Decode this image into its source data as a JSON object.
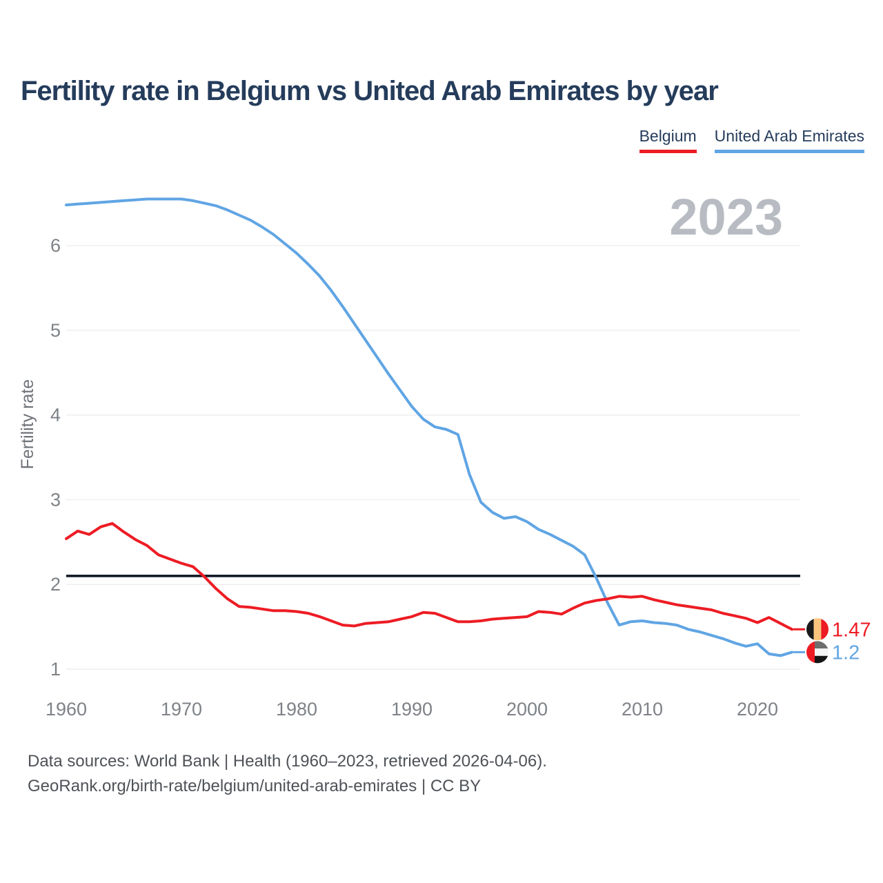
{
  "title": "Fertility rate in Belgium vs United Arab Emirates by year",
  "watermark_year": "2023",
  "legend": {
    "items": [
      {
        "label": "Belgium",
        "color": "#ed1c24"
      },
      {
        "label": "United Arab Emirates",
        "color": "#60a5e4"
      }
    ]
  },
  "end_labels": [
    {
      "series": "Belgium",
      "value": "1.47",
      "color": "#ed1c24",
      "flag": "belgium-flag-icon"
    },
    {
      "series": "United Arab Emirates",
      "value": "1.2",
      "color": "#60a5e4",
      "flag": "uae-flag-icon"
    }
  ],
  "footer": {
    "line1": "Data sources: World Bank | Health (1960–2023, retrieved 2026-04-06).",
    "line2": "GeoRank.org/birth-rate/belgium/united-arab-emirates | CC BY"
  },
  "chart_data": {
    "type": "line",
    "title": "Fertility rate in Belgium vs United Arab Emirates by year",
    "ylabel": "Fertility rate",
    "xlabel": "",
    "xlim": [
      1960,
      2023
    ],
    "ylim": [
      0.8,
      6.8
    ],
    "grid": true,
    "legend_position": "top-right",
    "x_ticks": [
      1960,
      1970,
      1980,
      1990,
      2000,
      2010,
      2020
    ],
    "y_ticks": [
      1,
      2,
      3,
      4,
      5,
      6
    ],
    "reference_line": {
      "value": 2.1,
      "color": "#0e1420"
    },
    "years": [
      1960,
      1961,
      1962,
      1963,
      1964,
      1965,
      1966,
      1967,
      1968,
      1969,
      1970,
      1971,
      1972,
      1973,
      1974,
      1975,
      1976,
      1977,
      1978,
      1979,
      1980,
      1981,
      1982,
      1983,
      1984,
      1985,
      1986,
      1987,
      1988,
      1989,
      1990,
      1991,
      1992,
      1993,
      1994,
      1995,
      1996,
      1997,
      1998,
      1999,
      2000,
      2001,
      2002,
      2003,
      2004,
      2005,
      2006,
      2007,
      2008,
      2009,
      2010,
      2011,
      2012,
      2013,
      2014,
      2015,
      2016,
      2017,
      2018,
      2019,
      2020,
      2021,
      2022,
      2023
    ],
    "series": [
      {
        "name": "Belgium",
        "color": "#ed1c24",
        "values": [
          2.54,
          2.63,
          2.59,
          2.68,
          2.72,
          2.62,
          2.53,
          2.46,
          2.35,
          2.3,
          2.25,
          2.21,
          2.09,
          1.95,
          1.83,
          1.74,
          1.73,
          1.71,
          1.69,
          1.69,
          1.68,
          1.66,
          1.62,
          1.57,
          1.52,
          1.51,
          1.54,
          1.55,
          1.56,
          1.59,
          1.62,
          1.67,
          1.66,
          1.61,
          1.56,
          1.56,
          1.57,
          1.59,
          1.6,
          1.61,
          1.62,
          1.68,
          1.67,
          1.65,
          1.72,
          1.78,
          1.81,
          1.83,
          1.86,
          1.85,
          1.86,
          1.82,
          1.79,
          1.76,
          1.74,
          1.72,
          1.7,
          1.66,
          1.63,
          1.6,
          1.55,
          1.61,
          1.54,
          1.47
        ]
      },
      {
        "name": "United Arab Emirates",
        "color": "#60a5e4",
        "values": [
          6.48,
          6.49,
          6.5,
          6.51,
          6.52,
          6.53,
          6.54,
          6.55,
          6.55,
          6.55,
          6.55,
          6.53,
          6.5,
          6.47,
          6.42,
          6.36,
          6.3,
          6.22,
          6.13,
          6.02,
          5.91,
          5.78,
          5.64,
          5.47,
          5.28,
          5.08,
          4.88,
          4.68,
          4.48,
          4.29,
          4.1,
          3.95,
          3.86,
          3.83,
          3.77,
          3.3,
          2.97,
          2.85,
          2.78,
          2.8,
          2.74,
          2.65,
          2.59,
          2.52,
          2.45,
          2.35,
          2.08,
          1.78,
          1.52,
          1.56,
          1.57,
          1.55,
          1.54,
          1.52,
          1.47,
          1.44,
          1.4,
          1.36,
          1.31,
          1.27,
          1.3,
          1.18,
          1.16,
          1.2
        ]
      }
    ]
  }
}
